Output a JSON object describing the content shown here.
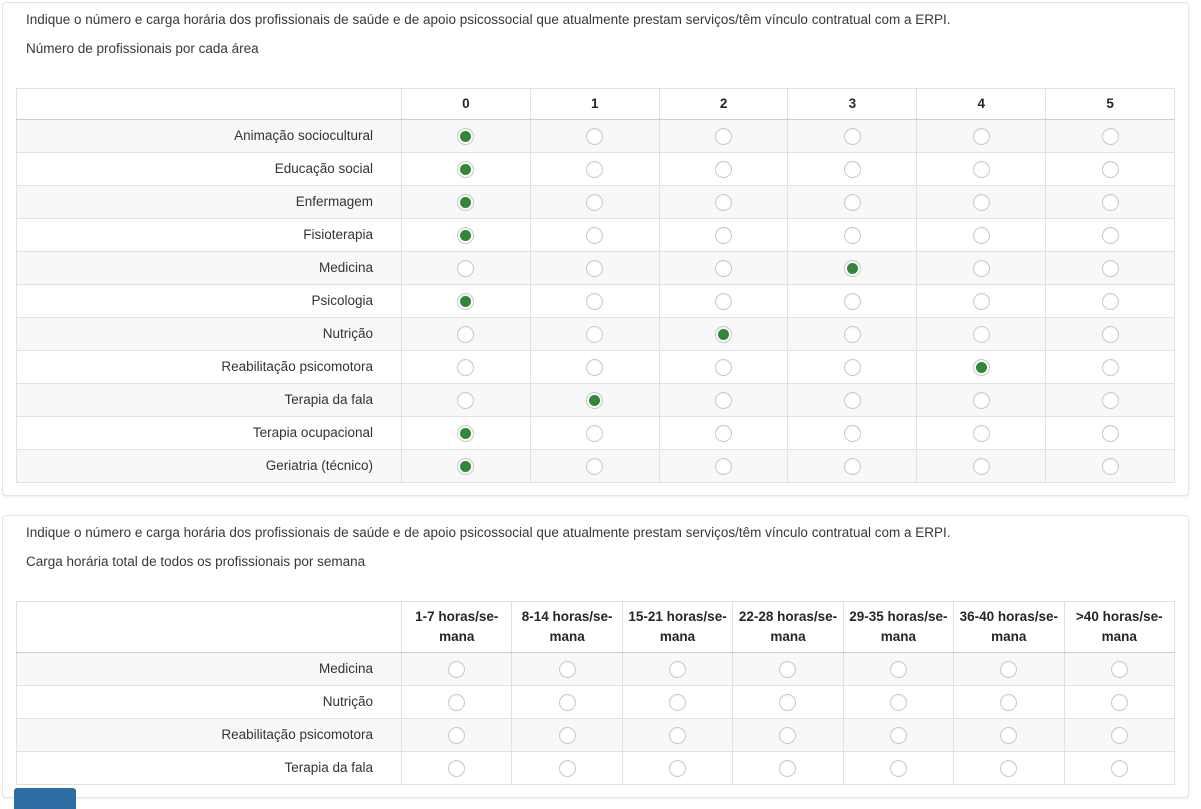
{
  "colors": {
    "radio_selected_green": "#328637",
    "stripe_row_background": "#f8f8f8",
    "cell_border": "#e1e1e1",
    "panel_border": "#e4e4e4",
    "partial_button_blue": "#2e6da4"
  },
  "question1": {
    "title": "Indique o número e carga horária dos profissionais de saúde e de apoio psicossocial que atualmente prestam serviços/têm vínculo contratual com a ERPI.",
    "subtitle": "Número de profissionais por cada área",
    "columns": [
      "0",
      "1",
      "2",
      "3",
      "4",
      "5"
    ],
    "rows": [
      {
        "label": "Animação sociocultural",
        "selected": 0
      },
      {
        "label": "Educação social",
        "selected": 0
      },
      {
        "label": "Enfermagem",
        "selected": 0
      },
      {
        "label": "Fisioterapia",
        "selected": 0
      },
      {
        "label": "Medicina",
        "selected": 3
      },
      {
        "label": "Psicologia",
        "selected": 0
      },
      {
        "label": "Nutrição",
        "selected": 2
      },
      {
        "label": "Reabilitação psicomotora",
        "selected": 4
      },
      {
        "label": "Terapia da fala",
        "selected": 1
      },
      {
        "label": "Terapia ocupacional",
        "selected": 0
      },
      {
        "label": "Geriatria (técnico)",
        "selected": 0
      }
    ]
  },
  "question2": {
    "title": "Indique o número e carga horária dos profissionais de saúde e de apoio psicossocial que atualmente prestam serviços/têm vínculo contratual com a ERPI.",
    "subtitle": "Carga horária total de todos os profissionais por semana",
    "columns": [
      "1-7 horas/se-\nmana",
      "8-14 horas/se-\nmana",
      "15-21 horas/se-\nmana",
      "22-28 horas/se-\nmana",
      "29-35 horas/se-\nmana",
      "36-40 horas/se-\nmana",
      ">40 horas/se-\nmana"
    ],
    "rows": [
      {
        "label": "Medicina",
        "selected": null
      },
      {
        "label": "Nutrição",
        "selected": null
      },
      {
        "label": "Reabilitação psicomotora",
        "selected": null
      },
      {
        "label": "Terapia da fala",
        "selected": null
      }
    ]
  }
}
